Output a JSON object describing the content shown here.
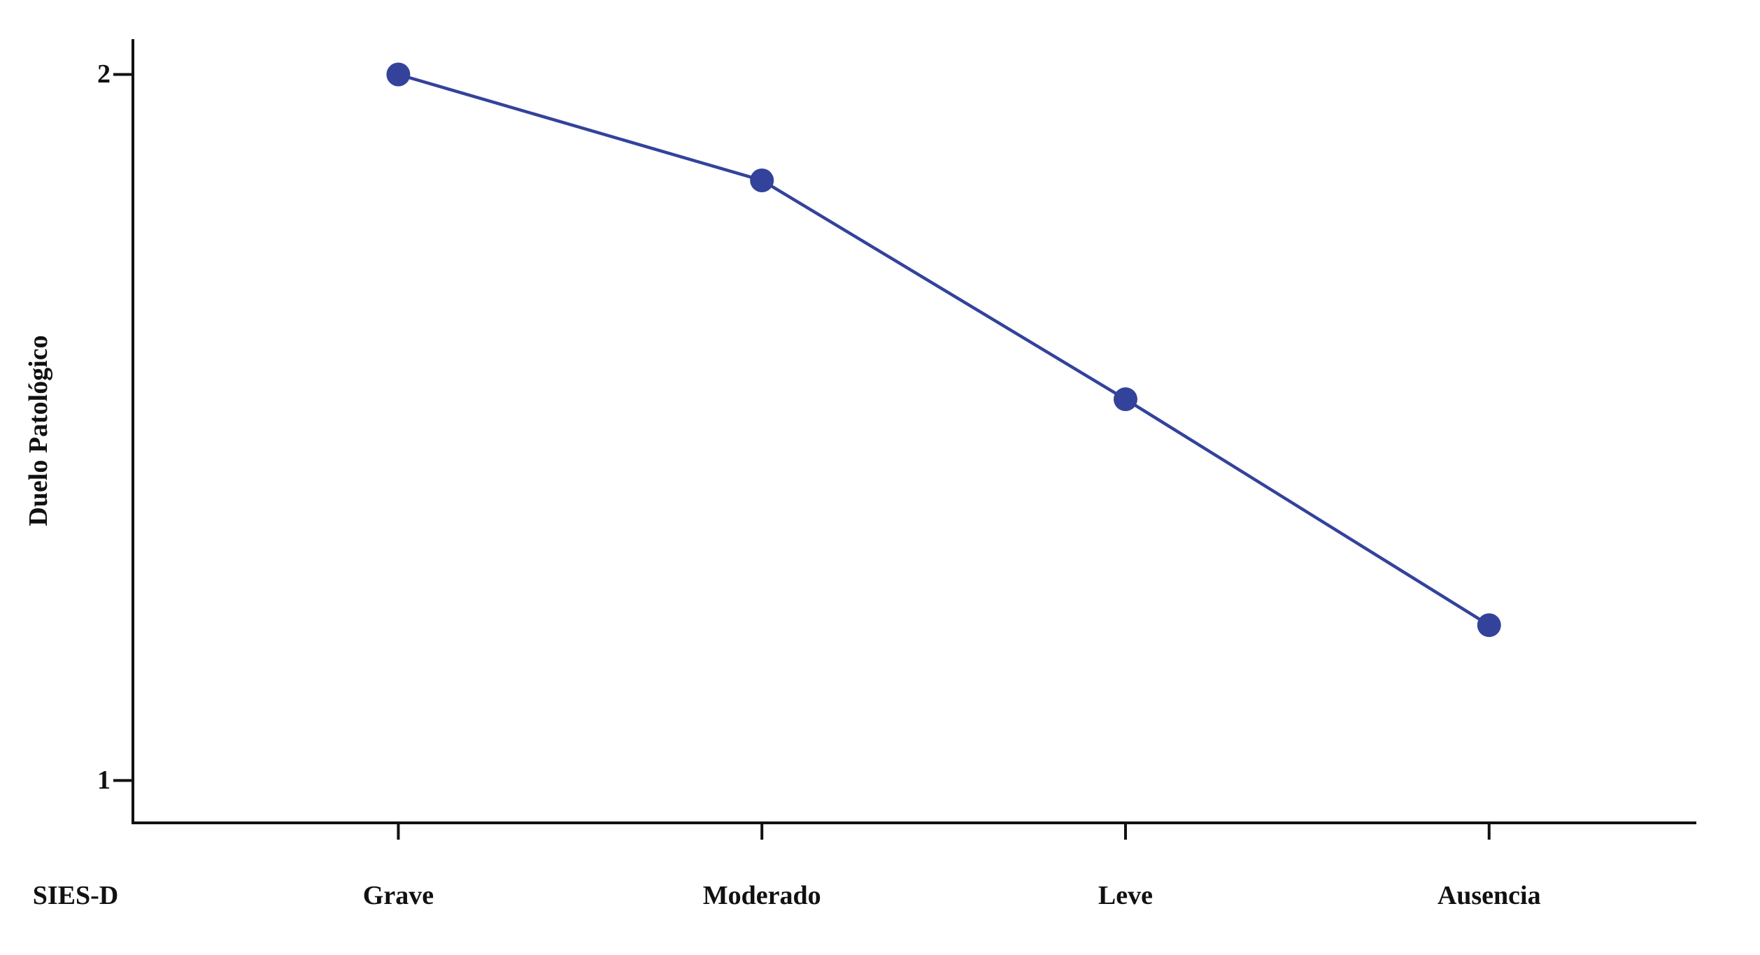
{
  "chart_data": {
    "type": "line",
    "title": "",
    "xlabel": "SIES-D",
    "ylabel": "Duelo Patológico",
    "categories": [
      "Grave",
      "Moderado",
      "Leve",
      "Ausencia"
    ],
    "values": [
      2.0,
      1.85,
      1.54,
      1.22
    ],
    "yticks": [
      2,
      1
    ],
    "ytick_labels": [
      "2",
      "1"
    ],
    "ylim": [
      0.94,
      2.05
    ],
    "grid": false,
    "legend": "none",
    "layout_hint": "single series line with circular markers, axes only on left and bottom",
    "colors": {
      "line": "#33439B",
      "marker": "#33439B",
      "axis": "#111111",
      "background": "#ffffff"
    }
  }
}
